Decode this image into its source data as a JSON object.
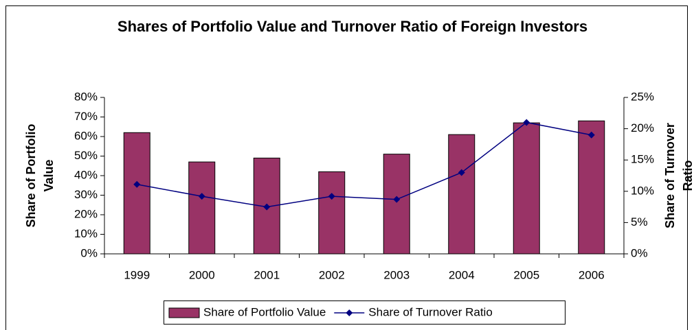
{
  "chart_data": {
    "type": "bar_line",
    "title": "Shares of Portfolio Value and Turnover Ratio of Foreign Investors",
    "y_label": "Share of Portfolio Value",
    "y2_label": "Share of Turnover Ratio",
    "categories": [
      "1999",
      "2000",
      "2001",
      "2002",
      "2003",
      "2004",
      "2005",
      "2006"
    ],
    "series": [
      {
        "name": "Share of Portfolio Value",
        "type": "bar",
        "color": "#993366",
        "values": [
          62,
          47,
          49,
          42,
          51,
          61,
          67,
          68
        ]
      },
      {
        "name": "Share of Turnover Ratio",
        "type": "line",
        "axis": "y2",
        "color": "#000080",
        "values": [
          11.1,
          9.2,
          7.5,
          9.2,
          8.7,
          13,
          21,
          19
        ]
      }
    ],
    "ylim": [
      0,
      80
    ],
    "yticks": [
      {
        "value": 0,
        "label": "0%"
      },
      {
        "value": 10,
        "label": "10%"
      },
      {
        "value": 20,
        "label": "20%"
      },
      {
        "value": 30,
        "label": "30%"
      },
      {
        "value": 40,
        "label": "40%"
      },
      {
        "value": 50,
        "label": "50%"
      },
      {
        "value": 60,
        "label": "60%"
      },
      {
        "value": 70,
        "label": "70%"
      },
      {
        "value": 80,
        "label": "80%"
      }
    ],
    "y2lim": [
      0,
      25
    ],
    "y2ticks": [
      {
        "value": 0,
        "label": "0%"
      },
      {
        "value": 5,
        "label": "5%"
      },
      {
        "value": 10,
        "label": "10%"
      },
      {
        "value": 15,
        "label": "15%"
      },
      {
        "value": 20,
        "label": "20%"
      },
      {
        "value": 25,
        "label": "25%"
      }
    ],
    "legend": "bottom"
  }
}
